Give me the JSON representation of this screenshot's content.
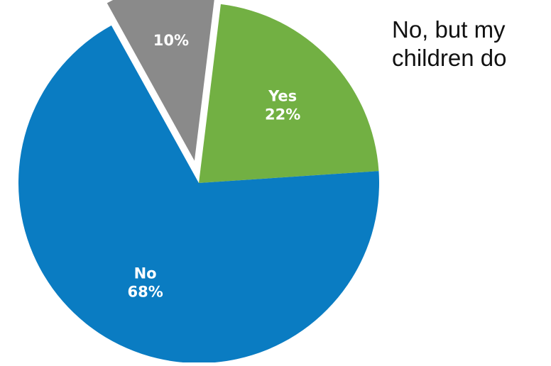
{
  "chart_data": {
    "type": "pie",
    "slices": [
      {
        "label": "No",
        "value": 68,
        "value_label": "68%",
        "color": "#0a7cc2",
        "label_color": "#ffffff",
        "exploded": false
      },
      {
        "label": "Yes",
        "value": 22,
        "value_label": "22%",
        "color": "#72b043",
        "label_color": "#ffffff",
        "exploded": false
      },
      {
        "label": "No, but my children do",
        "value": 10,
        "value_label": "10%",
        "color": "#8a8a8a",
        "label_color": "#ffffff",
        "exploded": true
      }
    ],
    "callout": {
      "line1": "No, but my",
      "line2": "children do"
    },
    "title": "",
    "legend": "none"
  }
}
